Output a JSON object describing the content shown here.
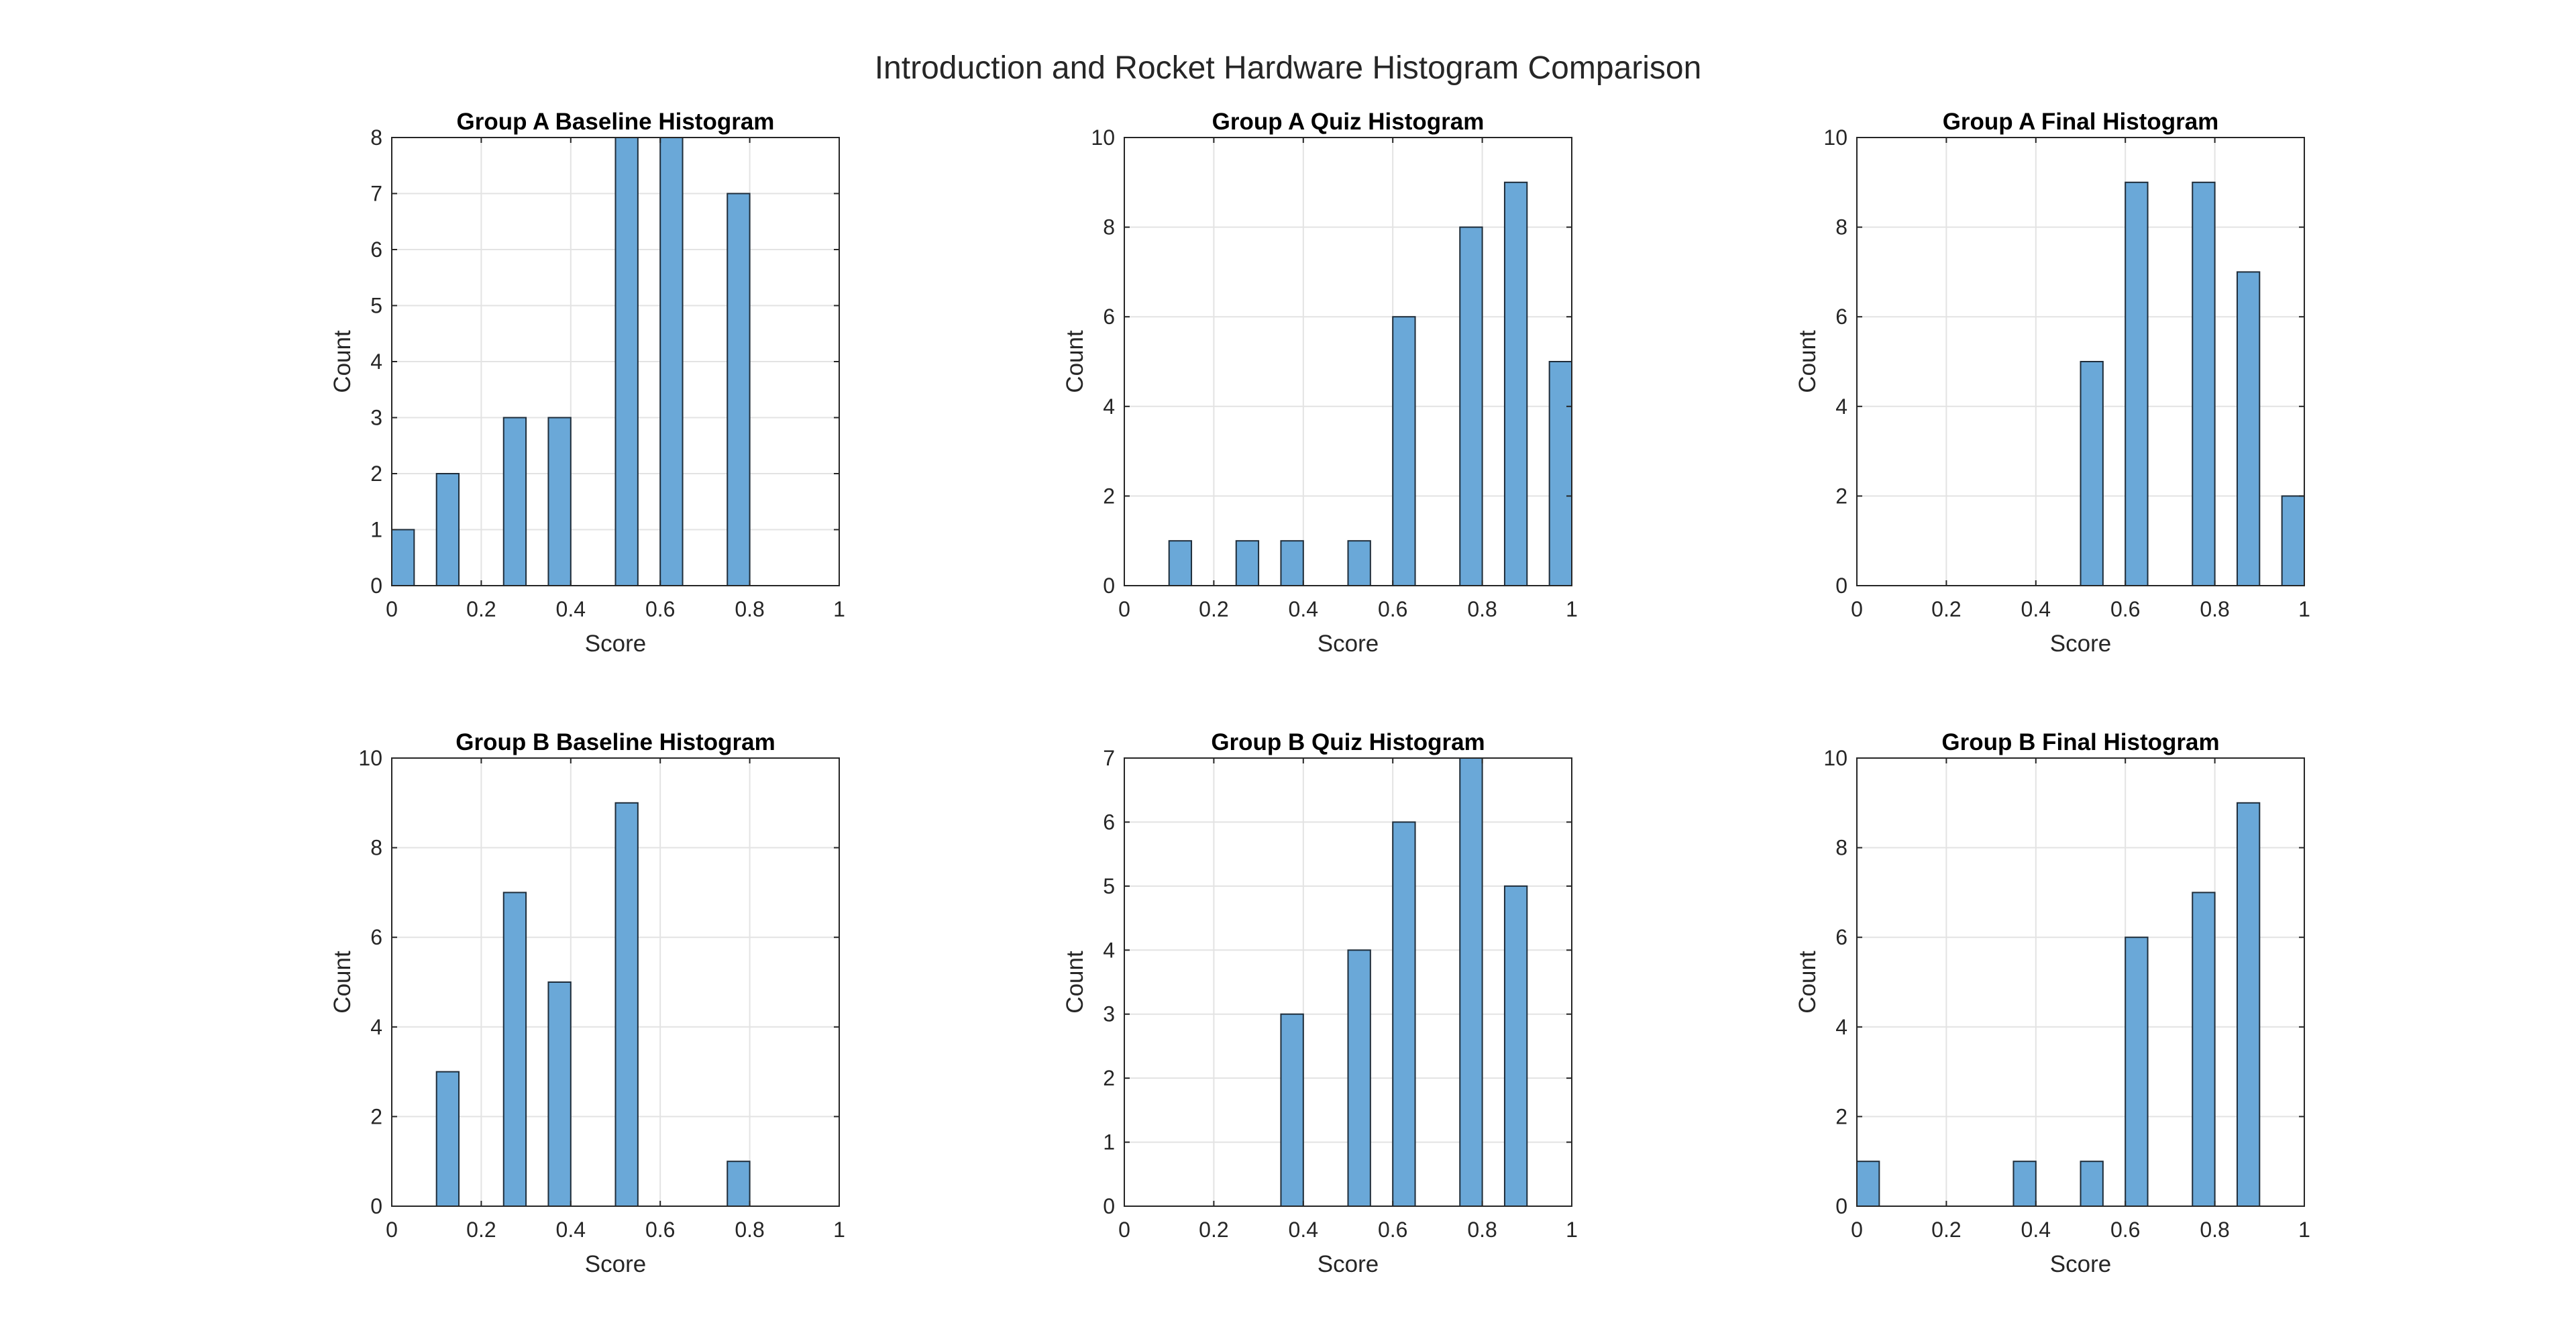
{
  "figure": {
    "title": "Introduction and Rocket Hardware Histogram Comparison",
    "bar_color": "#6aa8d8",
    "bar_edge_color": "#1f2d3a",
    "grid_color": "#e3e3e3",
    "axis_color": "#262626"
  },
  "chart_data": [
    {
      "type": "bar",
      "title": "Group A Baseline Histogram",
      "xlabel": "Score",
      "ylabel": "Count",
      "xlim": [
        0,
        1
      ],
      "ylim": [
        0,
        8
      ],
      "xticks": [
        "0",
        "0.2",
        "0.4",
        "0.6",
        "0.8",
        "1"
      ],
      "yticks": [
        "0",
        "1",
        "2",
        "3",
        "4",
        "5",
        "6",
        "7",
        "8"
      ],
      "bin_width": 0.05,
      "grid": true,
      "x": [
        0.025,
        0.125,
        0.275,
        0.375,
        0.525,
        0.625,
        0.775
      ],
      "values": [
        1,
        2,
        3,
        3,
        8,
        8,
        7
      ]
    },
    {
      "type": "bar",
      "title": "Group A Quiz Histogram",
      "xlabel": "Score",
      "ylabel": "Count",
      "xlim": [
        0,
        1
      ],
      "ylim": [
        0,
        10
      ],
      "xticks": [
        "0",
        "0.2",
        "0.4",
        "0.6",
        "0.8",
        "1"
      ],
      "yticks": [
        "0",
        "2",
        "4",
        "6",
        "8",
        "10"
      ],
      "bin_width": 0.05,
      "grid": true,
      "x": [
        0.125,
        0.275,
        0.375,
        0.525,
        0.625,
        0.775,
        0.875,
        0.975
      ],
      "values": [
        1,
        1,
        1,
        1,
        6,
        8,
        9,
        5
      ]
    },
    {
      "type": "bar",
      "title": "Group A Final Histogram",
      "xlabel": "Score",
      "ylabel": "Count",
      "xlim": [
        0,
        1
      ],
      "ylim": [
        0,
        10
      ],
      "xticks": [
        "0",
        "0.2",
        "0.4",
        "0.6",
        "0.8",
        "1"
      ],
      "yticks": [
        "0",
        "2",
        "4",
        "6",
        "8",
        "10"
      ],
      "bin_width": 0.05,
      "grid": true,
      "x": [
        0.525,
        0.625,
        0.775,
        0.875,
        0.975
      ],
      "values": [
        5,
        9,
        9,
        7,
        2
      ]
    },
    {
      "type": "bar",
      "title": "Group B Baseline Histogram",
      "xlabel": "Score",
      "ylabel": "Count",
      "xlim": [
        0,
        1
      ],
      "ylim": [
        0,
        10
      ],
      "xticks": [
        "0",
        "0.2",
        "0.4",
        "0.6",
        "0.8",
        "1"
      ],
      "yticks": [
        "0",
        "2",
        "4",
        "6",
        "8",
        "10"
      ],
      "bin_width": 0.05,
      "grid": true,
      "x": [
        0.125,
        0.275,
        0.375,
        0.525,
        0.775
      ],
      "values": [
        3,
        7,
        5,
        9,
        1
      ]
    },
    {
      "type": "bar",
      "title": "Group B Quiz Histogram",
      "xlabel": "Score",
      "ylabel": "Count",
      "xlim": [
        0,
        1
      ],
      "ylim": [
        0,
        7
      ],
      "xticks": [
        "0",
        "0.2",
        "0.4",
        "0.6",
        "0.8",
        "1"
      ],
      "yticks": [
        "0",
        "1",
        "2",
        "3",
        "4",
        "5",
        "6",
        "7"
      ],
      "bin_width": 0.05,
      "grid": true,
      "x": [
        0.375,
        0.525,
        0.625,
        0.775,
        0.875
      ],
      "values": [
        3,
        4,
        6,
        7,
        5
      ]
    },
    {
      "type": "bar",
      "title": "Group B Final Histogram",
      "xlabel": "Score",
      "ylabel": "Count",
      "xlim": [
        0,
        1
      ],
      "ylim": [
        0,
        10
      ],
      "xticks": [
        "0",
        "0.2",
        "0.4",
        "0.6",
        "0.8",
        "1"
      ],
      "yticks": [
        "0",
        "2",
        "4",
        "6",
        "8",
        "10"
      ],
      "bin_width": 0.05,
      "grid": true,
      "x": [
        0.025,
        0.375,
        0.525,
        0.625,
        0.775,
        0.875
      ],
      "values": [
        1,
        1,
        1,
        6,
        7,
        9
      ]
    }
  ]
}
